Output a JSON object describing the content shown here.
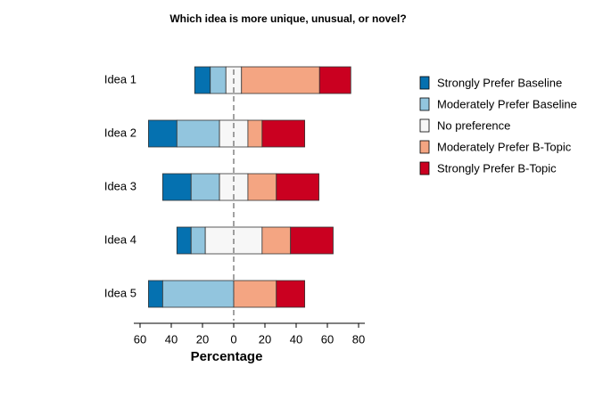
{
  "chart_data": {
    "type": "bar",
    "title": "Which idea is more unique, unusual, or novel?",
    "xlabel": "Percentage",
    "categories": [
      "Idea 1",
      "Idea 2",
      "Idea 3",
      "Idea 4",
      "Idea 5"
    ],
    "series": [
      {
        "name": "Strongly Prefer Baseline",
        "color": "#0571b0",
        "values": [
          10,
          18.2,
          18.2,
          9.1,
          9.1
        ]
      },
      {
        "name": "Moderately Prefer Baseline",
        "color": "#92c5de",
        "values": [
          10,
          27.3,
          18.2,
          9.1,
          45.5
        ]
      },
      {
        "name": "No preference",
        "color": "#f7f7f7",
        "values": [
          10,
          18.2,
          18.2,
          36.4,
          0
        ]
      },
      {
        "name": "Moderately Prefer B-Topic",
        "color": "#f4a582",
        "values": [
          50,
          9.1,
          18.2,
          18.2,
          27.3
        ]
      },
      {
        "name": "Strongly Prefer B-Topic",
        "color": "#ca0020",
        "values": [
          20,
          27.3,
          27.3,
          27.3,
          18.2
        ]
      }
    ],
    "xlim": [
      -64,
      84
    ],
    "xticks": [
      {
        "value": -60,
        "label": "60"
      },
      {
        "value": -40,
        "label": "40"
      },
      {
        "value": -20,
        "label": "20"
      },
      0,
      20,
      40,
      60,
      80
    ]
  }
}
